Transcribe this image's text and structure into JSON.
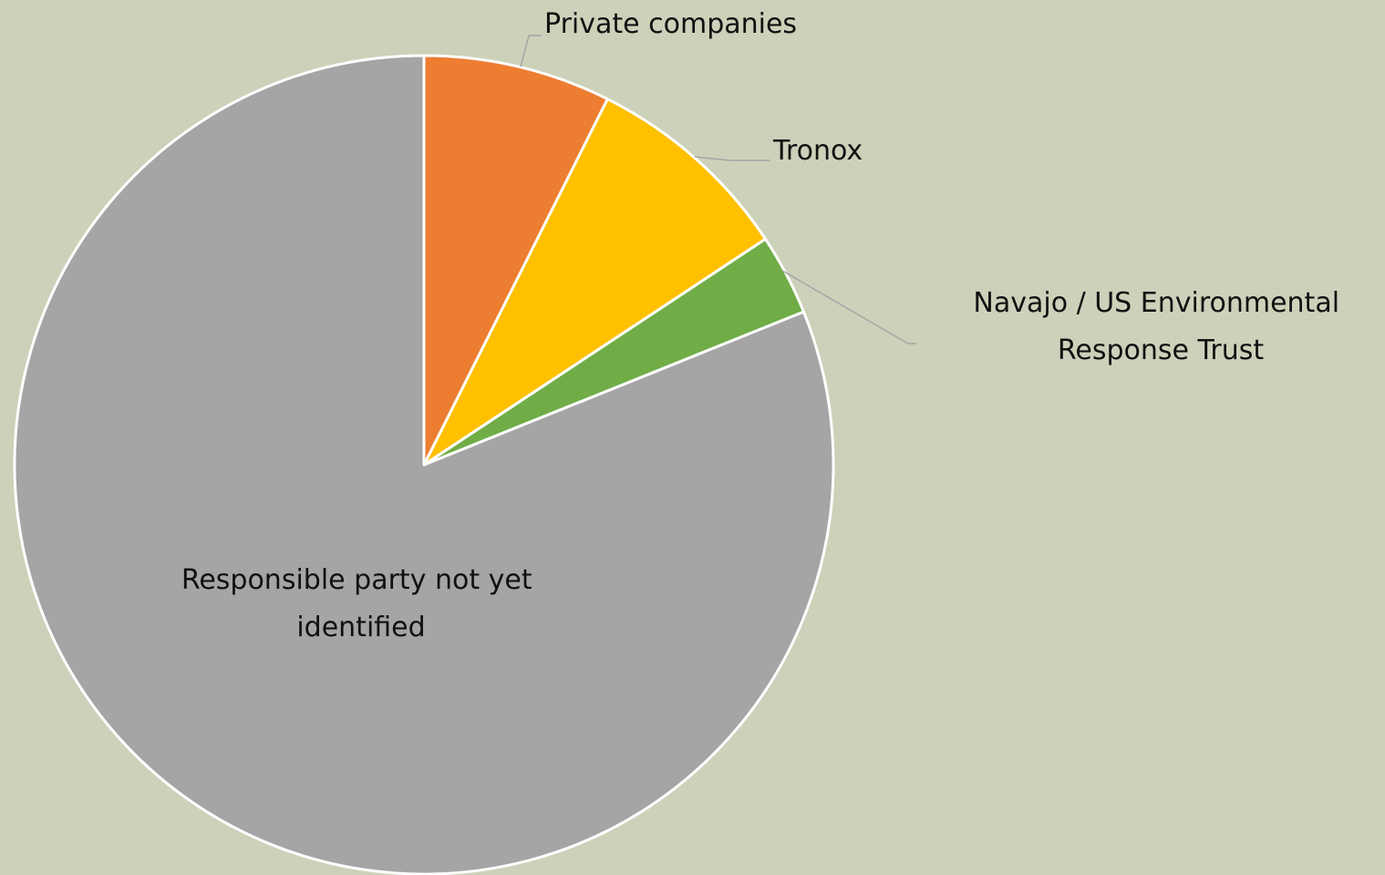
{
  "chart_data": {
    "type": "pie",
    "title": "",
    "start_angle_deg": 0,
    "direction": "clockwise",
    "slices": [
      {
        "label": "Private companies",
        "value": 7.4,
        "color": "#ED7D31"
      },
      {
        "label": "Tronox",
        "value": 8.3,
        "color": "#FFC000"
      },
      {
        "label": "Navajo / US Environmental Response Trust",
        "value": 3.2,
        "color": "#70AD47"
      },
      {
        "label": "Responsible party not yet identified",
        "value": 81.1,
        "color": "#A5A5A5"
      }
    ],
    "legend": "none",
    "data_labels": "category names"
  }
}
